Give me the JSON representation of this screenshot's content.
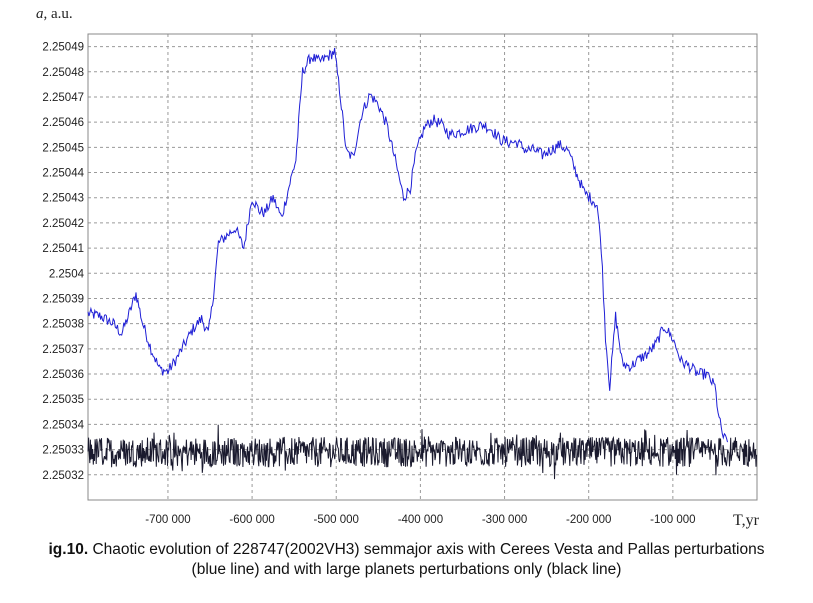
{
  "chart_data": {
    "type": "line",
    "ylabel_var": "a",
    "ylabel_unit": ", a.u.",
    "xlabel": "T,yr",
    "xlim": [
      -795000,
      0
    ],
    "ylim": [
      2.25031,
      2.250495
    ],
    "grid": true,
    "yticks": [
      2.25032,
      2.25033,
      2.25034,
      2.25035,
      2.25036,
      2.25037,
      2.25038,
      2.25039,
      2.2504,
      2.25041,
      2.25042,
      2.25043,
      2.25044,
      2.25045,
      2.25046,
      2.25047,
      2.25048,
      2.25049
    ],
    "ytick_labels": [
      "2.25032",
      "2.25033",
      "2.25034",
      "2.25035",
      "2.25036",
      "2.25037",
      "2.25038",
      "2.25039",
      "2.2504",
      "2.25041",
      "2.25042",
      "2.25043",
      "2.25044",
      "2.25045",
      "2.25046",
      "2.25047",
      "2.25048",
      "2.25049"
    ],
    "xticks": [
      -700000,
      -600000,
      -500000,
      -400000,
      -300000,
      -200000,
      -100000
    ],
    "xtick_labels": [
      "-700 000",
      "-600 000",
      "-500 000",
      "-400 000",
      "-300 000",
      "-200 000",
      "-100 000"
    ],
    "series": [
      {
        "color": "#1f1fd6",
        "points": [
          [
            -795000,
            2.250384
          ],
          [
            -780000,
            2.250383
          ],
          [
            -765000,
            2.25038
          ],
          [
            -755000,
            2.250376
          ],
          [
            -745000,
            2.250385
          ],
          [
            -738000,
            2.250392
          ],
          [
            -730000,
            2.25038
          ],
          [
            -720000,
            2.25037
          ],
          [
            -710000,
            2.250362
          ],
          [
            -700000,
            2.250361
          ],
          [
            -690000,
            2.250366
          ],
          [
            -680000,
            2.250372
          ],
          [
            -670000,
            2.250378
          ],
          [
            -660000,
            2.250382
          ],
          [
            -652000,
            2.250376
          ],
          [
            -647000,
            2.250388
          ],
          [
            -640000,
            2.250412
          ],
          [
            -630000,
            2.250415
          ],
          [
            -620000,
            2.250418
          ],
          [
            -610000,
            2.25041
          ],
          [
            -600000,
            2.25043
          ],
          [
            -592000,
            2.250425
          ],
          [
            -585000,
            2.250424
          ],
          [
            -575000,
            2.25043
          ],
          [
            -565000,
            2.250422
          ],
          [
            -555000,
            2.250436
          ],
          [
            -548000,
            2.250445
          ],
          [
            -540000,
            2.25048
          ],
          [
            -530000,
            2.250486
          ],
          [
            -520000,
            2.250484
          ],
          [
            -510000,
            2.250486
          ],
          [
            -502000,
            2.250488
          ],
          [
            -495000,
            2.25047
          ],
          [
            -488000,
            2.250448
          ],
          [
            -480000,
            2.250446
          ],
          [
            -470000,
            2.250463
          ],
          [
            -460000,
            2.250471
          ],
          [
            -450000,
            2.250467
          ],
          [
            -440000,
            2.250459
          ],
          [
            -430000,
            2.250445
          ],
          [
            -420000,
            2.25043
          ],
          [
            -412000,
            2.250434
          ],
          [
            -405000,
            2.250448
          ],
          [
            -395000,
            2.250458
          ],
          [
            -385000,
            2.250461
          ],
          [
            -375000,
            2.250459
          ],
          [
            -365000,
            2.250455
          ],
          [
            -355000,
            2.250456
          ],
          [
            -345000,
            2.250457
          ],
          [
            -335000,
            2.250458
          ],
          [
            -325000,
            2.250459
          ],
          [
            -315000,
            2.250457
          ],
          [
            -305000,
            2.250453
          ],
          [
            -295000,
            2.250452
          ],
          [
            -285000,
            2.250452
          ],
          [
            -275000,
            2.250449
          ],
          [
            -265000,
            2.250449
          ],
          [
            -255000,
            2.250447
          ],
          [
            -245000,
            2.250449
          ],
          [
            -235000,
            2.250451
          ],
          [
            -225000,
            2.250449
          ],
          [
            -215000,
            2.25044
          ],
          [
            -205000,
            2.250432
          ],
          [
            -195000,
            2.250429
          ],
          [
            -190000,
            2.250427
          ],
          [
            -185000,
            2.25041
          ],
          [
            -180000,
            2.250375
          ],
          [
            -175000,
            2.250355
          ],
          [
            -168000,
            2.250383
          ],
          [
            -160000,
            2.250364
          ],
          [
            -150000,
            2.250363
          ],
          [
            -140000,
            2.250366
          ],
          [
            -130000,
            2.250368
          ],
          [
            -120000,
            2.250372
          ],
          [
            -110000,
            2.250379
          ],
          [
            -100000,
            2.250374
          ],
          [
            -90000,
            2.250365
          ],
          [
            -80000,
            2.250363
          ],
          [
            -70000,
            2.25036
          ],
          [
            -60000,
            2.25036
          ],
          [
            -50000,
            2.250355
          ],
          [
            -45000,
            2.250342
          ],
          [
            -40000,
            2.250335
          ],
          [
            -35000,
            2.250333
          ]
        ]
      },
      {
        "color": "#1a1a2e",
        "mean": 2.250329,
        "amplitude": 6e-06
      }
    ]
  },
  "caption": {
    "prefix": "ig.10.",
    "text": " Chaotic evolution of 228747(2002VH3) semmajor axis with Cerees Vesta and Pallas perturbations",
    "line2": "(blue line) and with large planets perturbations only (black line)"
  }
}
